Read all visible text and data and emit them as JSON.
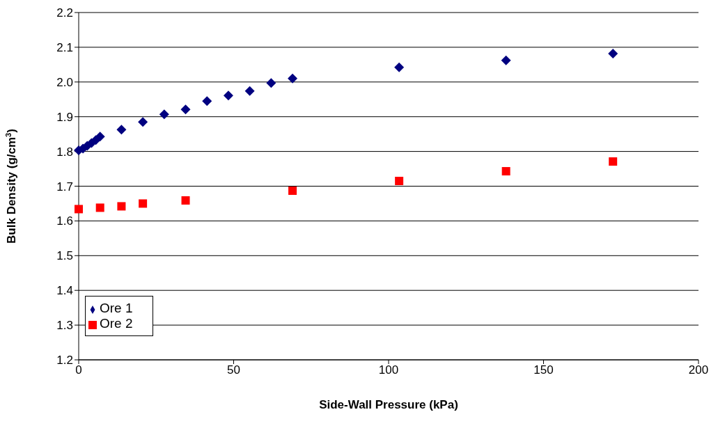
{
  "chart_data": {
    "type": "scatter",
    "xlabel": "Side-Wall Pressure (kPa)",
    "ylabel": "Bulk Density (g/cm$^{3}$)",
    "xlim": [
      0,
      200
    ],
    "xticks": [
      0,
      50,
      100,
      150,
      200
    ],
    "ylim": [
      1.2,
      2.2
    ],
    "yticks": [
      1.2,
      1.3,
      1.4,
      1.5,
      1.6,
      1.7,
      1.8,
      1.9,
      {
        "value": 2,
        "label": "2.0"
      },
      2.1,
      2.2
    ],
    "grid": "y",
    "legend": "bottom left",
    "series": [
      {
        "name": "Ore 1",
        "color": "#000080",
        "marker": "diamond",
        "x": [
          0,
          1.38,
          2.76,
          4.14,
          5.52,
          6.9,
          13.8,
          20.7,
          27.6,
          34.5,
          41.4,
          48.3,
          55.2,
          62.1,
          69,
          103.4,
          137.9,
          172.4
        ],
        "values": [
          1.803,
          1.808,
          1.816,
          1.824,
          1.833,
          1.843,
          1.863,
          1.885,
          1.907,
          1.921,
          1.945,
          1.961,
          1.974,
          1.997,
          2.01,
          2.042,
          2.062,
          2.082
        ]
      },
      {
        "name": "Ore 2",
        "color": "#ff0000",
        "marker": "square",
        "x": [
          0,
          6.9,
          13.8,
          20.7,
          34.5,
          69,
          103.4,
          137.9,
          172.4
        ],
        "values": [
          1.634,
          1.638,
          1.642,
          1.65,
          1.659,
          1.687,
          1.715,
          1.743,
          1.771
        ]
      }
    ]
  }
}
